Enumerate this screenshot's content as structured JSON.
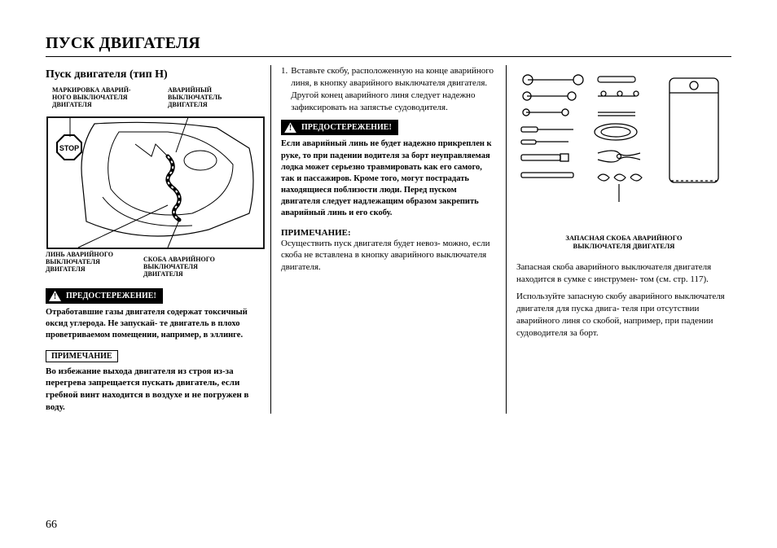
{
  "page_number": "66",
  "title": "ПУСК ДВИГАТЕЛЯ",
  "col1": {
    "subhead": "Пуск двигателя (тип H)",
    "label_top_left": "МАРКИРОВКА АВАРИЙ-\nНОГО ВЫКЛЮЧАТЕЛЯ\nДВИГАТЕЛЯ",
    "label_top_right": "АВАРИЙНЫЙ\nВЫКЛЮЧАТЕЛЬ\nДВИГАТЕЛЯ",
    "label_bot_left": "ЛИНЬ АВАРИЙНОГО\nВЫКЛЮЧАТЕЛЯ\nДВИГАТЕЛЯ",
    "label_bot_right": "СКОБА АВАРИЙНОГО\nВЫКЛЮЧАТЕЛЯ\nДВИГАТЕЛЯ",
    "stop_text": "STOP",
    "warning_label": "ПРЕДОСТЕРЕЖЕНИЕ!",
    "warning_text": "Отработавшие газы двигателя содержат токсичный оксид углерода. Не запускай-\nте двигатель в плохо проветриваемом помещении, например, в эллинге.",
    "note_label": "ПРИМЕЧАНИЕ",
    "note_text": "Во избежание выхода двигателя из строя из-за перегрева запрещается пускать двигатель, если гребной винт находится в воздухе и не погружен в воду."
  },
  "col2": {
    "item_num": "1.",
    "item_text": "Вставьте скобу, расположенную на конце аварийного линя, в кнопку аварийного выключателя двигателя. Другой конец аварийного линя следует надежно зафиксировать на запястье судоводителя.",
    "warning_label": "ПРЕДОСТЕРЕЖЕНИЕ!",
    "warning_text": "Если аварийный линь не будет надежно прикреплен к руке, то при падении водителя за борт неуправляемая лодка может серьезно травмировать как его самого, так и пассажиров. Кроме того, могут пострадать находящиеся поблизости люди. Перед пуском двигателя следует надлежащим образом закрепить аварийный линь и его скобу.",
    "note_head": "ПРИМЕЧАНИЕ:",
    "note_text": "Осуществить пуск двигателя будет невоз-\nможно, если скоба не вставлена в кнопку аварийного выключателя двигателя."
  },
  "col3": {
    "caption": "ЗАПАСНАЯ СКОБА АВАРИЙНОГО\nВЫКЛЮЧАТЕЛЯ ДВИГАТЕЛЯ",
    "para1": "Запасная скоба аварийного выключателя двигателя находится в сумке с инструмен-\nтом (см. стр. 117).",
    "para2": "Используйте запасную скобу аварийного выключателя двигателя для пуска двига-\nтеля при отсутствии аварийного линя со скобой, например, при падении судоводителя за борт."
  }
}
